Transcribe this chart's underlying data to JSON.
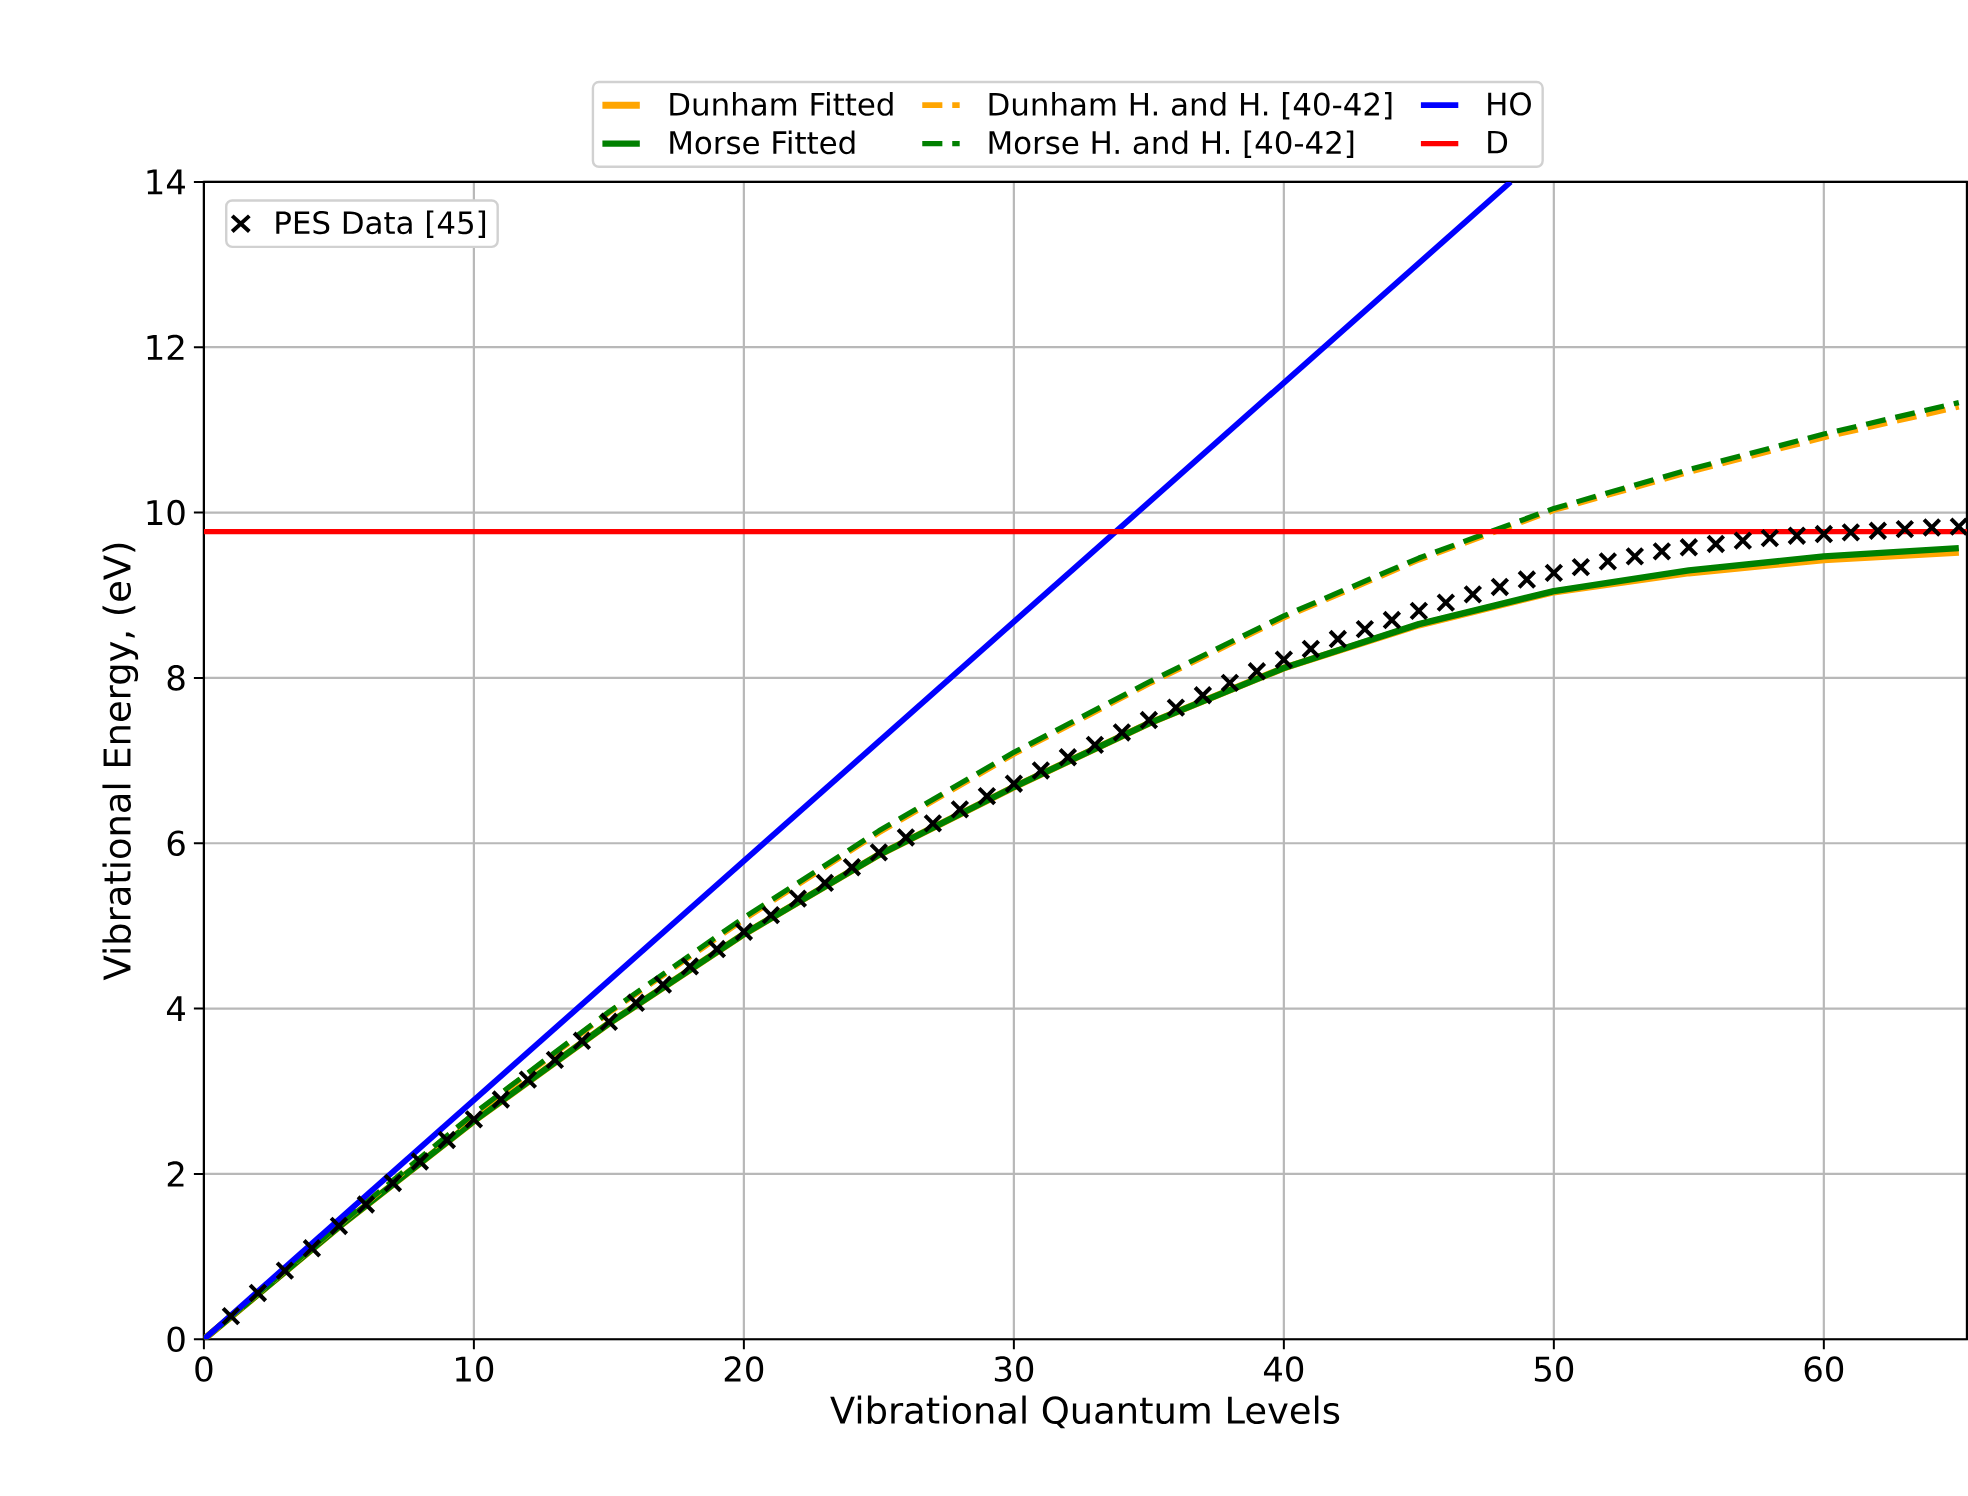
{
  "chart_data": {
    "type": "line",
    "xlabel": "Vibrational Quantum Levels",
    "ylabel": "Vibrational Energy, (eV)",
    "xlim": [
      0,
      65.3
    ],
    "ylim": [
      0,
      14
    ],
    "xticks": [
      0,
      10,
      20,
      30,
      40,
      50,
      60
    ],
    "yticks": [
      0,
      2,
      4,
      6,
      8,
      10,
      12,
      14
    ],
    "grid": true,
    "legend": "top",
    "series": [
      {
        "name": "Dunham Fitted",
        "color": "#ffa500",
        "line_style": "solid",
        "x": [
          0,
          5,
          10,
          15,
          20,
          25,
          30,
          35,
          40,
          45,
          50,
          55,
          60,
          65
        ],
        "values": [
          0,
          1.36,
          2.64,
          3.82,
          4.9,
          5.86,
          6.68,
          7.45,
          8.12,
          8.64,
          9.04,
          9.27,
          9.43,
          9.52
        ]
      },
      {
        "name": "Morse Fitted",
        "color": "#008000",
        "line_style": "solid",
        "x": [
          0,
          5,
          10,
          15,
          20,
          25,
          30,
          35,
          40,
          45,
          50,
          55,
          60,
          65
        ],
        "values": [
          0,
          1.36,
          2.64,
          3.82,
          4.9,
          5.86,
          6.68,
          7.45,
          8.12,
          8.65,
          9.05,
          9.3,
          9.47,
          9.57
        ]
      },
      {
        "name": "Dunham H. and H. [40-42]",
        "color": "#ffa500",
        "line_style": "dashed",
        "x": [
          0,
          5,
          10,
          15,
          20,
          25,
          30,
          35,
          40,
          45,
          50,
          55,
          60,
          65
        ],
        "values": [
          0,
          1.38,
          2.72,
          3.95,
          5.08,
          6.13,
          7.08,
          7.93,
          8.73,
          9.43,
          10.03,
          10.49,
          10.91,
          11.28
        ]
      },
      {
        "name": "Morse H. and H. [40-42]",
        "color": "#008000",
        "line_style": "dashed",
        "x": [
          0,
          5,
          10,
          15,
          20,
          25,
          30,
          35,
          40,
          45,
          50,
          55,
          60,
          65
        ],
        "values": [
          0,
          1.38,
          2.73,
          3.96,
          5.1,
          6.15,
          7.1,
          7.95,
          8.75,
          9.45,
          10.05,
          10.52,
          10.95,
          11.33
        ]
      },
      {
        "name": "HO",
        "color": "#0000ff",
        "line_style": "solid",
        "x": [
          0,
          48.4
        ],
        "values": [
          0,
          14
        ]
      },
      {
        "name": "D",
        "color": "#ff0000",
        "line_style": "solid",
        "x": [
          0,
          65.3
        ],
        "values": [
          9.77,
          9.77
        ]
      },
      {
        "name": "PES Data [45]",
        "type": "scatter",
        "color": "#000000",
        "marker": "cross",
        "x": [
          1,
          2,
          3,
          4,
          5,
          6,
          7,
          8,
          9,
          10,
          11,
          12,
          13,
          14,
          15,
          16,
          17,
          18,
          19,
          20,
          21,
          22,
          23,
          24,
          25,
          26,
          27,
          28,
          29,
          30,
          31,
          32,
          33,
          34,
          35,
          36,
          37,
          38,
          39,
          40,
          41,
          42,
          43,
          44,
          45,
          46,
          47,
          48,
          49,
          50,
          51,
          52,
          53,
          54,
          55,
          56,
          57,
          58,
          59,
          60,
          61,
          62,
          63,
          64,
          65
        ],
        "values": [
          0.28,
          0.56,
          0.83,
          1.1,
          1.37,
          1.63,
          1.89,
          2.15,
          2.41,
          2.66,
          2.9,
          3.14,
          3.38,
          3.61,
          3.84,
          4.07,
          4.29,
          4.51,
          4.72,
          4.93,
          5.13,
          5.33,
          5.52,
          5.71,
          5.89,
          6.07,
          6.24,
          6.41,
          6.57,
          6.72,
          6.88,
          7.04,
          7.19,
          7.34,
          7.49,
          7.64,
          7.79,
          7.94,
          8.08,
          8.22,
          8.35,
          8.47,
          8.59,
          8.7,
          8.81,
          8.91,
          9.01,
          9.1,
          9.19,
          9.27,
          9.34,
          9.41,
          9.47,
          9.53,
          9.58,
          9.62,
          9.66,
          9.69,
          9.72,
          9.74,
          9.76,
          9.78,
          9.8,
          9.82,
          9.83
        ]
      }
    ]
  }
}
